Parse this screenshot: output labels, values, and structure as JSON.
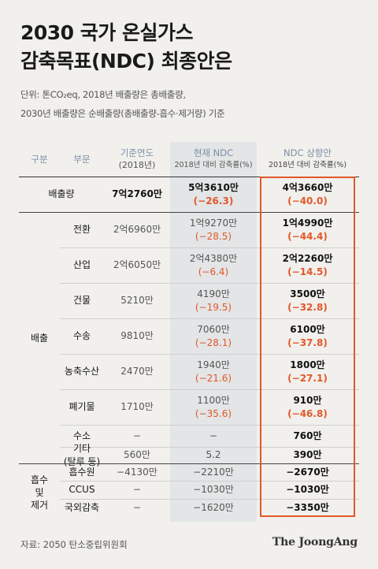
{
  "title_line1": "2030 국가 온실가스",
  "title_line2": "감축목표(NDC) 최종안은",
  "unit_line1": "단위: 톤CO₂eq, 2018년 배출량은 총배출량,",
  "unit_line2": "2030년 배출량은 순배출량(총배출량-흡수·제거량) 기준",
  "headers": {
    "group": "구분",
    "sector": "부문",
    "base": "기준연도",
    "base_sub": "(2018년)",
    "current": "현재 NDC",
    "current_sub": "2018년 대비 감축률(%)",
    "revised": "NDC 상향안",
    "revised_sub": "2018년 대비 감축률(%)"
  },
  "emission_row": {
    "label": "배출량",
    "base": "7억2760만",
    "current": "5억3610만",
    "current_pct": "(−26.3)",
    "revised": "4억3660만",
    "revised_pct": "(−40.0)"
  },
  "emissions_group_label": "배출",
  "emissions": [
    {
      "sector": "전환",
      "base": "2억6960만",
      "current": "1억9270만",
      "current_pct": "(−28.5)",
      "revised": "1억4990만",
      "revised_pct": "(−44.4)"
    },
    {
      "sector": "산업",
      "base": "2억6050만",
      "current": "2억4380만",
      "current_pct": "(−6.4)",
      "revised": "2억2260만",
      "revised_pct": "(−14.5)"
    },
    {
      "sector": "건물",
      "base": "5210만",
      "current": "4190만",
      "current_pct": "(−19.5)",
      "revised": "3500만",
      "revised_pct": "(−32.8)"
    },
    {
      "sector": "수송",
      "base": "9810만",
      "current": "7060만",
      "current_pct": "(−28.1)",
      "revised": "6100만",
      "revised_pct": "(−37.8)"
    },
    {
      "sector": "농축수산",
      "base": "2470만",
      "current": "1940만",
      "current_pct": "(−21.6)",
      "revised": "1800만",
      "revised_pct": "(−27.1)"
    },
    {
      "sector": "폐기물",
      "base": "1710만",
      "current": "1100만",
      "current_pct": "(−35.6)",
      "revised": "910만",
      "revised_pct": "(−46.8)"
    },
    {
      "sector": "수소",
      "base": "−",
      "current": "−",
      "current_pct": "",
      "revised": "760만",
      "revised_pct": ""
    },
    {
      "sector": "기타",
      "sector2": "(탈루 등)",
      "base": "560만",
      "current": "5.2",
      "current_pct": "",
      "revised": "390만",
      "revised_pct": ""
    }
  ],
  "absorption_group_label": [
    "흡수",
    "및",
    "제거"
  ],
  "absorption": [
    {
      "sector": "흡수원",
      "base": "−4130만",
      "current": "−2210만",
      "revised": "−2670만"
    },
    {
      "sector": "CCUS",
      "base": "−",
      "current": "−1030만",
      "revised": "−1030만"
    },
    {
      "sector": "국외감축",
      "base": "−",
      "current": "−1620만",
      "revised": "−3350만"
    }
  ],
  "source": "자료: 2050 탄소중립위원회",
  "logo": "The JoongAng",
  "colors": {
    "accent": "#e2582a",
    "background": "#f1f0ec",
    "highlight_column": "#e3e5e6",
    "header_text": "#7a8fa8"
  }
}
